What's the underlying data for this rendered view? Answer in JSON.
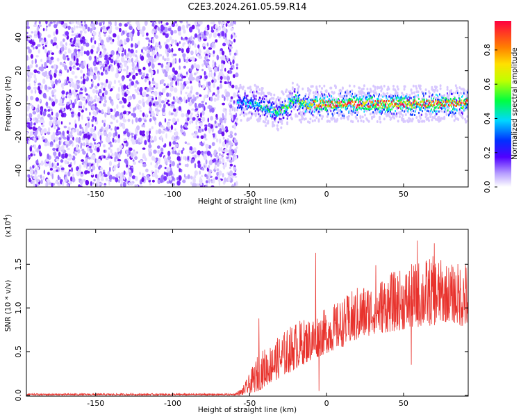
{
  "title": "C2E3.2024.261.05.59.R14",
  "colors": {
    "snr_line": "#e8322c",
    "axis": "#000000",
    "background": "#ffffff"
  },
  "chart_data": [
    {
      "type": "heatmap",
      "xlabel": "Height of straight line (km)",
      "ylabel": "Frequency (Hz)",
      "xlim": [
        -195,
        92
      ],
      "ylim": [
        -50,
        50
      ],
      "x_ticks": [
        -150,
        -100,
        -50,
        0,
        50
      ],
      "y_ticks": [
        -40,
        -20,
        0,
        20,
        40
      ],
      "colorbar": {
        "label": "Normalized spectral amplitude",
        "range": [
          0,
          0.97
        ],
        "ticks": [
          0.0,
          0.2,
          0.4,
          0.6,
          0.8
        ],
        "tick_labels": [
          "0.0",
          "0.2",
          "0.4",
          "0.6",
          "0.8"
        ]
      },
      "noise_region_x": [
        -195,
        -58
      ],
      "ridge": {
        "x": [
          -58,
          -52,
          -45,
          -40,
          -35,
          -32,
          -28,
          -25,
          -22,
          -20,
          -17,
          -13,
          -8,
          0,
          20,
          40,
          60,
          92
        ],
        "freq": [
          0,
          1,
          0,
          -2,
          -4,
          -5,
          -3,
          -1,
          2,
          3,
          0,
          -1,
          0,
          0,
          0,
          0,
          0,
          0
        ],
        "amplitude": [
          0.3,
          0.35,
          0.4,
          0.45,
          0.5,
          0.5,
          0.55,
          0.6,
          0.5,
          0.45,
          0.6,
          0.7,
          0.85,
          0.9,
          0.9,
          0.9,
          0.9,
          0.9
        ]
      }
    },
    {
      "type": "line",
      "xlabel": "Height of straight line (km)",
      "ylabel": "SNR (10 * v/v)",
      "y_multiplier": "(x10",
      "y_multiplier_exp": "4",
      "y_multiplier_close": ")",
      "xlim": [
        -195,
        92
      ],
      "ylim": [
        -0.01,
        1.9
      ],
      "x_ticks": [
        -150,
        -100,
        -50,
        0,
        50
      ],
      "y_ticks": [
        0.0,
        0.5,
        1.0,
        1.5
      ],
      "y_tick_labels": [
        "0.0",
        "0.5",
        "1.0",
        "1.5"
      ],
      "envelope": {
        "x": [
          -195,
          -60,
          -55,
          -50,
          -45,
          -40,
          -35,
          -30,
          -20,
          -10,
          0,
          10,
          20,
          30,
          40,
          50,
          60,
          70,
          80,
          92
        ],
        "low": [
          0.0,
          0.0,
          0.0,
          0.02,
          0.04,
          0.1,
          0.15,
          0.2,
          0.3,
          0.4,
          0.48,
          0.55,
          0.62,
          0.7,
          0.72,
          0.75,
          0.78,
          0.8,
          0.85,
          0.75
        ],
        "high": [
          0.02,
          0.02,
          0.08,
          0.25,
          0.45,
          0.55,
          0.6,
          0.7,
          0.85,
          0.9,
          1.0,
          1.1,
          1.25,
          1.3,
          1.4,
          1.45,
          1.55,
          1.6,
          1.5,
          1.55
        ]
      },
      "spikes": [
        {
          "x": -44,
          "y": 0.88
        },
        {
          "x": -35,
          "y": 0.52
        },
        {
          "x": -7,
          "y": 1.63
        },
        {
          "x": 32,
          "y": 1.49
        },
        {
          "x": 59,
          "y": 1.77
        },
        {
          "x": 70,
          "y": 1.74
        },
        {
          "x": 55,
          "y": 0.35
        },
        {
          "x": -5,
          "y": 0.05
        }
      ]
    }
  ]
}
